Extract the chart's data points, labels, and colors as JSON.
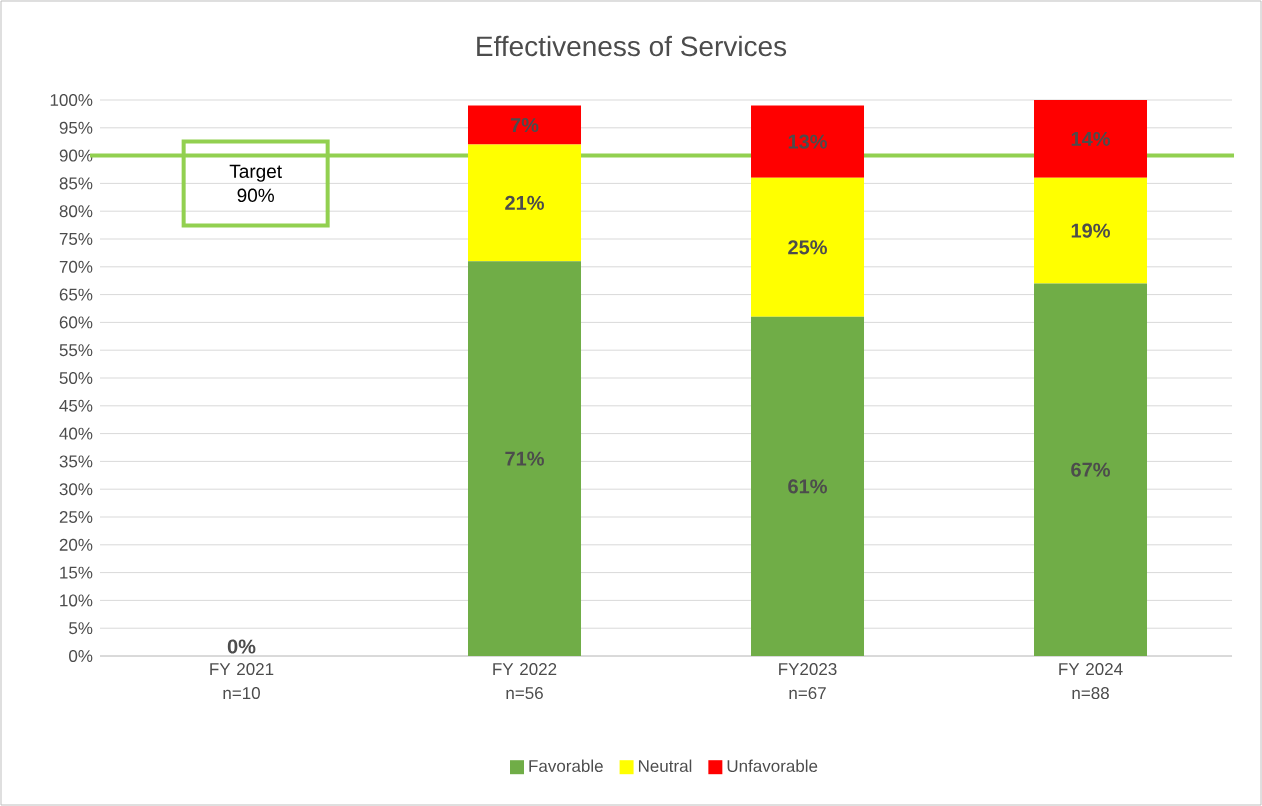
{
  "chart_data": {
    "type": "bar",
    "stacked": true,
    "title": "Effectiveness of Services",
    "categories": [
      "FY 2021 n=10",
      "FY 2022 n=56",
      "FY2023 n=67",
      "FY 2024 n=88"
    ],
    "series": [
      {
        "name": "Favorable",
        "color": "#70ad47",
        "values": [
          0,
          71,
          61,
          67
        ],
        "value_labels": [
          "0%",
          "71%",
          "61%",
          "67%"
        ]
      },
      {
        "name": "Neutral",
        "color": "#ffff00",
        "values": [
          0,
          21,
          25,
          19
        ],
        "value_labels": [
          null,
          "21%",
          "25%",
          "19%"
        ]
      },
      {
        "name": "Unfavorable",
        "color": "#ff0000",
        "values": [
          0,
          7,
          13,
          14
        ],
        "value_labels": [
          null,
          "7%",
          "13%",
          "14%"
        ]
      }
    ],
    "ylim": [
      0,
      100
    ],
    "yticks": [
      {
        "value": 0,
        "label": "0%"
      },
      {
        "value": 5,
        "label": "5%"
      },
      {
        "value": 10,
        "label": "10%"
      },
      {
        "value": 15,
        "label": "15%"
      },
      {
        "value": 20,
        "label": "20%"
      },
      {
        "value": 25,
        "label": "25%"
      },
      {
        "value": 30,
        "label": "30%"
      },
      {
        "value": 35,
        "label": "35%"
      },
      {
        "value": 40,
        "label": "40%"
      },
      {
        "value": 45,
        "label": "45%"
      },
      {
        "value": 50,
        "label": "50%"
      },
      {
        "value": 55,
        "label": "55%"
      },
      {
        "value": 60,
        "label": "60%"
      },
      {
        "value": 65,
        "label": "65%"
      },
      {
        "value": 70,
        "label": "70%"
      },
      {
        "value": 75,
        "label": "75%"
      },
      {
        "value": 80,
        "label": "80%"
      },
      {
        "value": 85,
        "label": "85%"
      },
      {
        "value": 90,
        "label": "90%"
      },
      {
        "value": 95,
        "label": "95%"
      },
      {
        "value": 100,
        "label": "100%"
      }
    ],
    "ref_lines": [
      {
        "axis": "y",
        "value": 90,
        "label": "Target 90%",
        "color": "#92d050"
      }
    ],
    "grid": "y",
    "legend": "bottom"
  }
}
